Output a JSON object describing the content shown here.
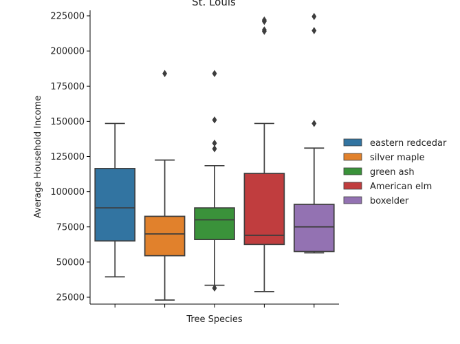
{
  "chart_data": {
    "type": "box",
    "title": "St. Louis",
    "xlabel": "Tree Species",
    "ylabel": "Average Household Income",
    "ylim": [
      13000,
      234000
    ],
    "yticks": [
      25000,
      50000,
      75000,
      100000,
      125000,
      150000,
      175000,
      200000,
      225000
    ],
    "ytick_labels": [
      "25000",
      "50000",
      "75000",
      "100000",
      "125000",
      "150000",
      "175000",
      "200000",
      "225000"
    ],
    "legend_position": "right",
    "grid": false,
    "series": [
      {
        "name": "eastern redcedar",
        "color": "#3274a1",
        "whisker_low": 39500,
        "q1": 65000,
        "median": 88500,
        "q3": 116500,
        "whisker_high": 148500,
        "outliers": []
      },
      {
        "name": "silver maple",
        "color": "#e1812c",
        "whisker_low": 23000,
        "q1": 54500,
        "median": 70000,
        "q3": 82500,
        "whisker_high": 122500,
        "outliers": [
          184000
        ]
      },
      {
        "name": "green ash",
        "color": "#3a923a",
        "whisker_low": 33500,
        "q1": 66000,
        "median": 80000,
        "q3": 88500,
        "whisker_high": 118500,
        "outliers": [
          31500,
          130500,
          134500,
          151000,
          184000
        ]
      },
      {
        "name": "American elm",
        "color": "#c03d3e",
        "whisker_low": 29000,
        "q1": 62500,
        "median": 69000,
        "q3": 113000,
        "whisker_high": 148500,
        "outliers": [
          214000,
          215000,
          221000,
          222000
        ]
      },
      {
        "name": "boxelder",
        "color": "#9372b2",
        "whisker_low": 56500,
        "q1": 57500,
        "median": 75000,
        "q3": 91000,
        "whisker_high": 131000,
        "outliers": [
          148500,
          214500,
          224500
        ]
      }
    ]
  }
}
